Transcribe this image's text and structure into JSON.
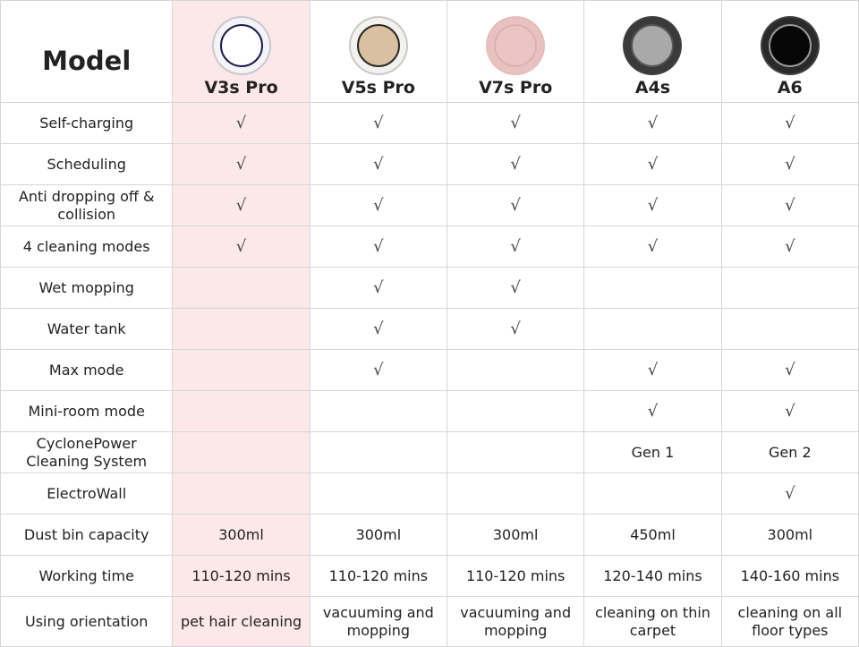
{
  "header": {
    "label": "Model"
  },
  "products": [
    {
      "name": "V3s Pro",
      "shell": "#f4f4f6",
      "lid": "#ffffff",
      "rim": "#1c1b4a",
      "highlight": true
    },
    {
      "name": "V5s Pro",
      "shell": "#f4f2ee",
      "lid": "#d8c0a0",
      "rim": "#2a2a2a",
      "highlight": false
    },
    {
      "name": "V7s Pro",
      "shell": "#e8c2c0",
      "lid": "#ebc5c3",
      "rim": "#e0b0b0",
      "highlight": false
    },
    {
      "name": "A4s",
      "shell": "#3a3a3a",
      "lid": "#a9a9a9",
      "rim": "#555555",
      "highlight": false
    },
    {
      "name": "A6",
      "shell": "#2a2a2a",
      "lid": "#070707",
      "rim": "#999999",
      "highlight": false
    }
  ],
  "highlight_color": "#fce8e8",
  "check_symbol": "√",
  "rows": [
    {
      "feature": "Self-charging",
      "values": [
        "√",
        "√",
        "√",
        "√",
        "√"
      ]
    },
    {
      "feature": "Scheduling",
      "values": [
        "√",
        "√",
        "√",
        "√",
        "√"
      ]
    },
    {
      "feature": "Anti dropping off & collision",
      "values": [
        "√",
        "√",
        "√",
        "√",
        "√"
      ]
    },
    {
      "feature": "4 cleaning modes",
      "values": [
        "√",
        "√",
        "√",
        "√",
        "√"
      ]
    },
    {
      "feature": "Wet mopping",
      "values": [
        "",
        "√",
        "√",
        "",
        ""
      ]
    },
    {
      "feature": "Water tank",
      "values": [
        "",
        "√",
        "√",
        "",
        ""
      ]
    },
    {
      "feature": "Max mode",
      "values": [
        "",
        "√",
        "",
        "√",
        "√"
      ]
    },
    {
      "feature": "Mini-room mode",
      "values": [
        "",
        "",
        "",
        "√",
        "√"
      ]
    },
    {
      "feature": "CyclonePower Cleaning System",
      "values": [
        "",
        "",
        "",
        "Gen 1",
        "Gen 2"
      ]
    },
    {
      "feature": "ElectroWall",
      "values": [
        "",
        "",
        "",
        "",
        "√"
      ]
    },
    {
      "feature": "Dust bin capacity",
      "values": [
        "300ml",
        "300ml",
        "300ml",
        "450ml",
        "300ml"
      ]
    },
    {
      "feature": "Working time",
      "values": [
        "110-120 mins",
        "110-120 mins",
        "110-120 mins",
        "120-140 mins",
        "140-160 mins"
      ]
    },
    {
      "feature": "Using orientation",
      "values": [
        "pet hair cleaning",
        "vacuuming and mopping",
        "vacuuming and mopping",
        "cleaning on thin carpet",
        "cleaning on all floor types"
      ]
    }
  ]
}
